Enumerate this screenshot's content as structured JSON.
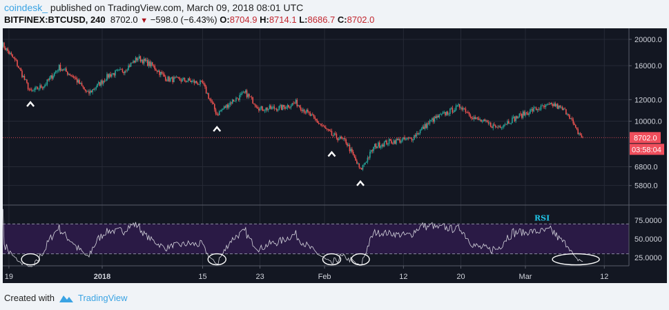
{
  "header": {
    "publisher": "coindesk_",
    "published_text": " published on TradingView.com, March 09, 2018 08:01 UTC",
    "symbol": "BITFINEX:BTCUSD, 240",
    "last": "8702.0",
    "change": "−598.0 (−6.43%)",
    "open_label": "O:",
    "open": "8704.9",
    "high_label": "H:",
    "high": "8714.1",
    "low_label": "L:",
    "low": "8686.7",
    "close_label": "C:",
    "close": "8702.0"
  },
  "footer": {
    "created_with": "Created with",
    "brand": "TradingView"
  },
  "colors": {
    "up": "#26a69a",
    "down": "#ef5350",
    "background": "#131722",
    "rsi_fill": "#2a1a45",
    "rsi_line": "#d8d8e0",
    "rsi_label": "#20c5e8",
    "price_tag": "#ef4e5c",
    "brand": "#3aa3e3"
  },
  "chart_data": {
    "type": "candlestick",
    "interval": "240",
    "price_scale": "log",
    "ylim": [
      5300,
      21500
    ],
    "price_ticks": [
      "20000.0",
      "16000.0",
      "12000.0",
      "10000.0",
      "6800.0",
      "5800.0"
    ],
    "last_price_tag": "8702.0",
    "countdown_tag": "03:58:04",
    "x_ticks": [
      {
        "date": "2017-12-19",
        "label": "19"
      },
      {
        "date": "2018-01-01",
        "label": "2018"
      },
      {
        "date": "2018-01-15",
        "label": "15"
      },
      {
        "date": "2018-01-23",
        "label": "23"
      },
      {
        "date": "2018-02-01",
        "label": "Feb"
      },
      {
        "date": "2018-02-12",
        "label": "12"
      },
      {
        "date": "2018-02-20",
        "label": "20"
      },
      {
        "date": "2018-03-01",
        "label": "Mar"
      },
      {
        "date": "2018-03-12",
        "label": "12"
      }
    ],
    "xlim": [
      "2017-12-18",
      "2018-03-15"
    ],
    "close_path": [
      [
        "2017-12-18",
        19300
      ],
      [
        "2017-12-20",
        16500
      ],
      [
        "2017-12-22",
        12800
      ],
      [
        "2017-12-24",
        13600
      ],
      [
        "2017-12-26",
        15800
      ],
      [
        "2017-12-28",
        14600
      ],
      [
        "2017-12-30",
        12600
      ],
      [
        "2018-01-02",
        14800
      ],
      [
        "2018-01-04",
        15400
      ],
      [
        "2018-01-06",
        17100
      ],
      [
        "2018-01-08",
        16000
      ],
      [
        "2018-01-10",
        14300
      ],
      [
        "2018-01-13",
        14100
      ],
      [
        "2018-01-15",
        13700
      ],
      [
        "2018-01-17",
        10600
      ],
      [
        "2018-01-19",
        11800
      ],
      [
        "2018-01-21",
        12700
      ],
      [
        "2018-01-23",
        11100
      ],
      [
        "2018-01-26",
        11200
      ],
      [
        "2018-01-28",
        11700
      ],
      [
        "2018-01-30",
        10500
      ],
      [
        "2018-02-02",
        8900
      ],
      [
        "2018-02-04",
        8400
      ],
      [
        "2018-02-06",
        6600
      ],
      [
        "2018-02-08",
        8100
      ],
      [
        "2018-02-10",
        8400
      ],
      [
        "2018-02-13",
        8600
      ],
      [
        "2018-02-16",
        10100
      ],
      [
        "2018-02-20",
        11400
      ],
      [
        "2018-02-22",
        10200
      ],
      [
        "2018-02-25",
        9500
      ],
      [
        "2018-02-28",
        10400
      ],
      [
        "2018-03-02",
        11000
      ],
      [
        "2018-03-05",
        11500
      ],
      [
        "2018-03-07",
        10700
      ],
      [
        "2018-03-08",
        9300
      ],
      [
        "2018-03-09",
        8702
      ]
    ],
    "swing_low_markers": [
      "2017-12-22",
      "2018-01-17",
      "2018-02-02",
      "2018-02-06"
    ],
    "rsi": {
      "label": "RSI",
      "ticks": [
        "75.0000",
        "50.0000",
        "25.0000"
      ],
      "bands": [
        30,
        70
      ],
      "ylim": [
        10,
        90
      ],
      "circled_lows": [
        "2017-12-22",
        "2018-01-17",
        "2018-02-02",
        "2018-02-06",
        "2018-03-09"
      ]
    }
  }
}
